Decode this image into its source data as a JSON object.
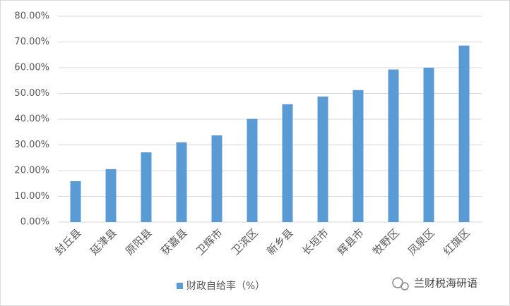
{
  "chart_data": {
    "type": "bar",
    "categories": [
      "封丘县",
      "延津县",
      "原阳县",
      "获嘉县",
      "卫辉市",
      "卫滨区",
      "新乡县",
      "长垣市",
      "辉县市",
      "牧野区",
      "凤泉区",
      "红旗区"
    ],
    "series": [
      {
        "name": "财政自给率（%）",
        "color": "#5b9bd5",
        "values": [
          15.9,
          20.6,
          27.1,
          31.0,
          33.7,
          40.1,
          45.8,
          48.8,
          51.3,
          59.3,
          60.0,
          68.6
        ]
      }
    ],
    "ylim": [
      0,
      80
    ],
    "yticks": [
      {
        "value": 0,
        "label": "0.00%"
      },
      {
        "value": 10,
        "label": "10.00%"
      },
      {
        "value": 20,
        "label": "20.00%"
      },
      {
        "value": 30,
        "label": "30.00%"
      },
      {
        "value": 40,
        "label": "40.00%"
      },
      {
        "value": 50,
        "label": "50.00%"
      },
      {
        "value": 60,
        "label": "60.00%"
      },
      {
        "value": 70,
        "label": "70.00%"
      },
      {
        "value": 80,
        "label": "80.00%"
      }
    ],
    "grid": true,
    "legend": "bottom",
    "watermark": "兰财税海研语"
  }
}
